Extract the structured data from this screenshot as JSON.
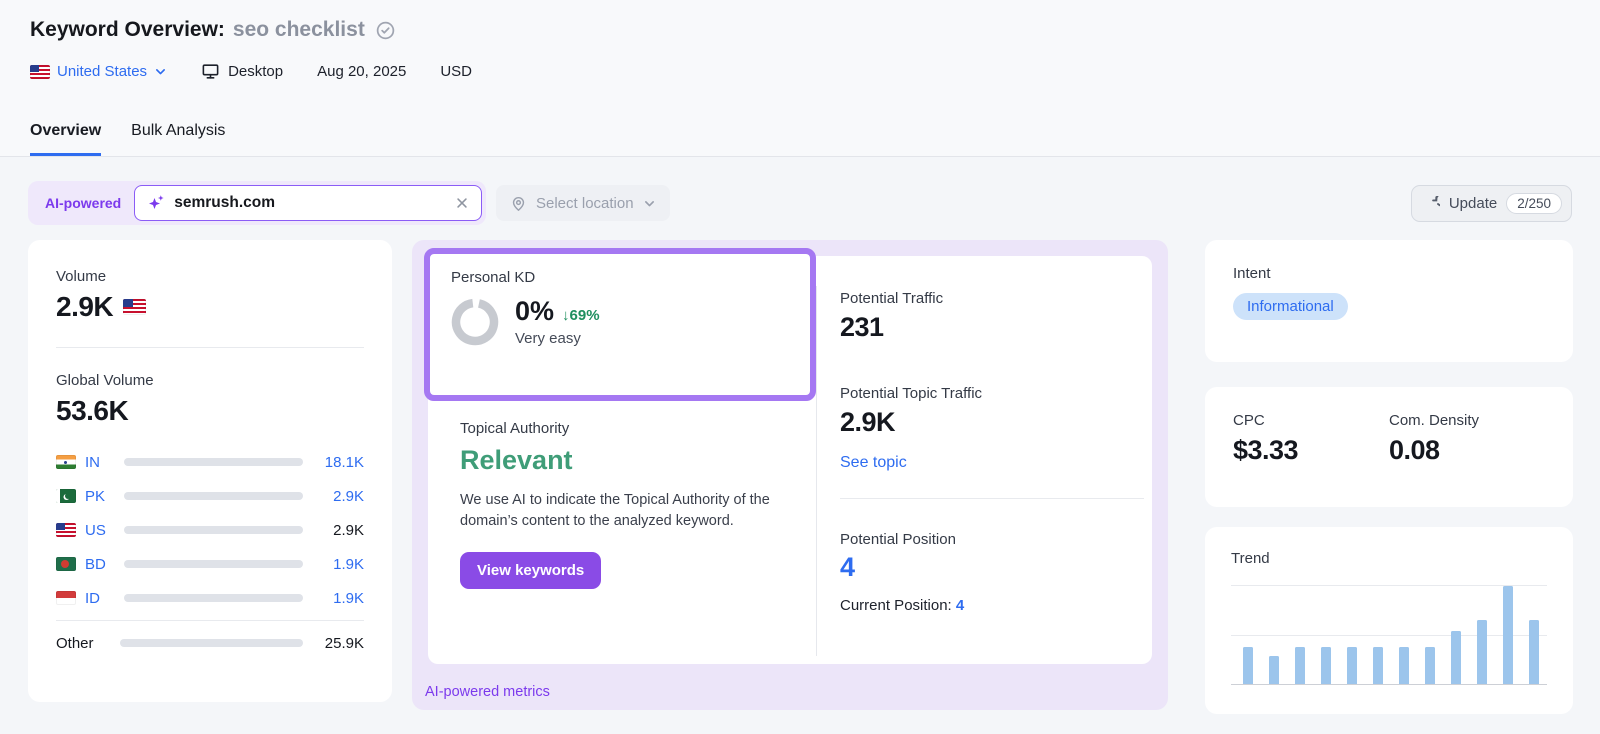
{
  "header": {
    "title": "Keyword Overview:",
    "keyword": "seo checklist",
    "location": "United States",
    "device": "Desktop",
    "date": "Aug 20, 2025",
    "currency": "USD"
  },
  "tabs": {
    "overview": "Overview",
    "bulk": "Bulk Analysis"
  },
  "toolbar": {
    "ai_badge": "AI-powered",
    "search_value": "semrush.com",
    "location_placeholder": "Select location",
    "update_label": "Update",
    "update_count": "2/250"
  },
  "volume_card": {
    "label": "Volume",
    "value": "2.9K",
    "global_label": "Global Volume",
    "global_value": "53.6K",
    "total_num": 53.6,
    "countries": [
      {
        "code": "IN",
        "flag": "in",
        "value": "18.1K",
        "num": 18.1,
        "link": true
      },
      {
        "code": "PK",
        "flag": "pk",
        "value": "2.9K",
        "num": 2.9,
        "link": true
      },
      {
        "code": "US",
        "flag": "us",
        "value": "2.9K",
        "num": 2.9,
        "link": false,
        "dark_bar": true
      },
      {
        "code": "BD",
        "flag": "bd",
        "value": "1.9K",
        "num": 1.9,
        "link": true
      },
      {
        "code": "ID",
        "flag": "id",
        "value": "1.9K",
        "num": 1.9,
        "link": true
      }
    ],
    "other": {
      "label": "Other",
      "value": "25.9K",
      "num": 25.9
    }
  },
  "kd_card": {
    "label": "Personal KD",
    "value": "0%",
    "delta": "↓69%",
    "difficulty": "Very easy"
  },
  "topical": {
    "label": "Topical Authority",
    "value": "Relevant",
    "description": "We use AI to indicate the Topical Authority of the domain’s content to the analyzed keyword.",
    "button": "View keywords"
  },
  "potential": {
    "traffic_label": "Potential Traffic",
    "traffic_value": "231",
    "topic_label": "Potential Topic Traffic",
    "topic_value": "2.9K",
    "see_topic": "See topic",
    "position_label": "Potential Position",
    "position_value": "4",
    "current_label": "Current Position: ",
    "current_value": "4"
  },
  "ai_footer": "AI-powered metrics",
  "intent_card": {
    "label": "Intent",
    "badge": "Informational"
  },
  "cpc_card": {
    "cpc_label": "CPC",
    "cpc_value": "$3.33",
    "density_label": "Com. Density",
    "density_value": "0.08"
  },
  "trend_card": {
    "label": "Trend"
  },
  "chart_data": {
    "type": "bar",
    "title": "Trend",
    "values": [
      37,
      28,
      37,
      37,
      37,
      37,
      37,
      37,
      54,
      65,
      99,
      65
    ],
    "ylim": [
      0,
      100
    ],
    "xlabel": "",
    "ylabel": "",
    "gridlines": true,
    "bar_color": "#9cc5ec",
    "note_axis_labels_visible": false
  },
  "colors": {
    "accent_blue": "#2e6cf0",
    "purple_text": "#7c3aed",
    "purple_button": "#8a4be6",
    "purple_border": "#a578f2",
    "lavender_bg": "#ece5f9",
    "green_relevant": "#3f9d78",
    "green_delta": "#1f8f5f",
    "bar_blue": "#5fa8f0",
    "bar_dark_blue": "#2050c0",
    "intent_badge_bg": "#cde2fa",
    "trend_bar": "#9cc5ec",
    "donut_gray": "#c7cad0"
  }
}
